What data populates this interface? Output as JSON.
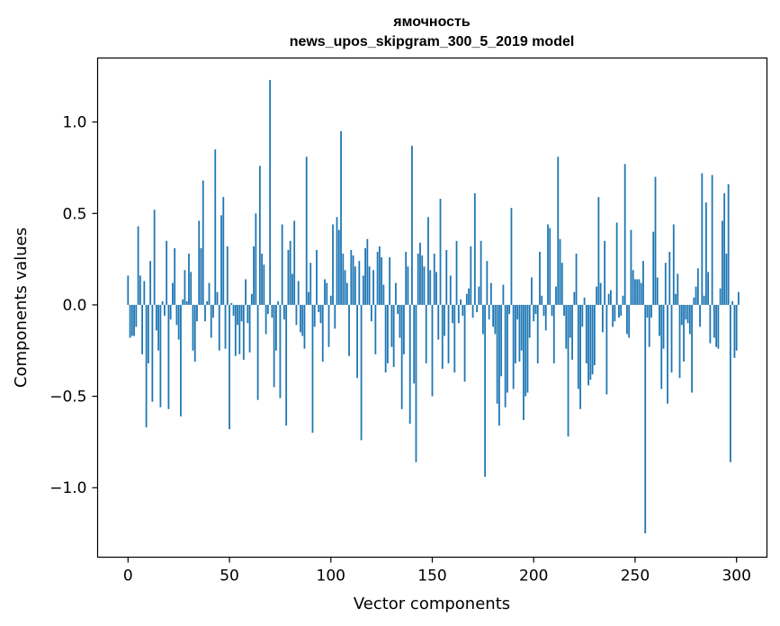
{
  "chart_data": {
    "type": "bar",
    "title_line1": "ямочность",
    "title_line2": "news_upos_skipgram_300_5_2019 model",
    "xlabel": "Vector components",
    "ylabel": "Components values",
    "xlim": [
      -15,
      315
    ],
    "ylim": [
      -1.38,
      1.35
    ],
    "x_ticks": [
      0,
      50,
      100,
      150,
      200,
      250,
      300
    ],
    "x_tick_labels": [
      "0",
      "50",
      "100",
      "150",
      "200",
      "250",
      "300"
    ],
    "y_ticks": [
      -1.0,
      -0.5,
      0.0,
      0.5,
      1.0
    ],
    "y_tick_labels": [
      "−1.0",
      "−0.5",
      "0.0",
      "0.5",
      "1.0"
    ],
    "bar_color": "#1f77b4",
    "grid": false,
    "x_start": 0,
    "values": [
      0.16,
      -0.18,
      -0.17,
      -0.17,
      -0.12,
      0.43,
      0.16,
      -0.27,
      0.13,
      -0.67,
      -0.32,
      0.24,
      -0.53,
      0.52,
      -0.14,
      -0.25,
      -0.56,
      0.02,
      -0.06,
      0.35,
      -0.57,
      -0.08,
      0.12,
      0.31,
      -0.11,
      -0.19,
      -0.61,
      0.03,
      0.19,
      0.02,
      0.28,
      0.18,
      -0.25,
      -0.31,
      -0.09,
      0.46,
      0.31,
      0.68,
      -0.09,
      0.02,
      0.12,
      -0.18,
      -0.07,
      0.85,
      0.07,
      -0.25,
      0.49,
      0.59,
      -0.24,
      0.32,
      -0.68,
      0.01,
      -0.06,
      -0.28,
      -0.11,
      -0.27,
      -0.09,
      -0.3,
      0.14,
      -0.1,
      -0.26,
      0.06,
      0.32,
      0.5,
      -0.52,
      0.76,
      0.28,
      0.22,
      -0.16,
      -0.05,
      1.23,
      -0.07,
      -0.45,
      -0.25,
      0.02,
      -0.51,
      0.44,
      -0.08,
      -0.66,
      0.3,
      0.35,
      0.17,
      0.46,
      -0.11,
      0.13,
      -0.15,
      -0.17,
      -0.24,
      0.81,
      0.07,
      0.23,
      -0.7,
      -0.12,
      0.3,
      -0.04,
      -0.1,
      -0.31,
      0.14,
      0.12,
      -0.23,
      0.05,
      0.44,
      -0.13,
      0.48,
      0.41,
      0.95,
      0.28,
      0.19,
      0.12,
      -0.28,
      0.3,
      0.27,
      0.21,
      -0.4,
      0.24,
      -0.74,
      0.16,
      0.31,
      0.36,
      0.21,
      -0.09,
      0.19,
      -0.27,
      0.29,
      0.32,
      0.26,
      0.11,
      -0.37,
      -0.32,
      0.26,
      -0.23,
      -0.34,
      0.12,
      -0.05,
      -0.18,
      -0.57,
      -0.27,
      0.29,
      0.21,
      -0.65,
      0.87,
      -0.43,
      -0.86,
      0.28,
      0.34,
      0.27,
      0.21,
      -0.32,
      0.48,
      0.19,
      -0.5,
      0.28,
      0.18,
      -0.19,
      0.58,
      -0.35,
      -0.17,
      0.3,
      -0.32,
      0.16,
      -0.1,
      -0.37,
      0.35,
      -0.1,
      0.03,
      -0.06,
      -0.42,
      0.06,
      0.09,
      0.32,
      -0.07,
      0.61,
      -0.04,
      0.1,
      0.35,
      -0.16,
      -0.94,
      0.24,
      -0.08,
      0.12,
      -0.12,
      -0.16,
      -0.54,
      -0.66,
      -0.39,
      0.11,
      -0.56,
      -0.48,
      -0.05,
      0.53,
      -0.46,
      -0.32,
      -0.08,
      -0.31,
      -0.25,
      -0.63,
      -0.5,
      -0.48,
      -0.18,
      0.15,
      -0.09,
      -0.05,
      -0.32,
      0.29,
      0.05,
      -0.06,
      -0.14,
      0.44,
      0.42,
      -0.06,
      -0.32,
      0.1,
      0.81,
      0.36,
      0.23,
      -0.06,
      -0.24,
      -0.72,
      -0.18,
      -0.3,
      0.07,
      0.28,
      -0.46,
      -0.57,
      -0.12,
      0.04,
      -0.32,
      -0.44,
      -0.41,
      -0.38,
      -0.33,
      0.1,
      0.59,
      0.12,
      -0.15,
      0.35,
      -0.49,
      0.06,
      0.08,
      -0.12,
      -0.09,
      0.45,
      -0.07,
      -0.06,
      0.05,
      0.77,
      -0.16,
      -0.18,
      0.41,
      0.19,
      0.14,
      0.14,
      0.14,
      0.12,
      0.24,
      -1.25,
      -0.07,
      -0.23,
      -0.07,
      0.4,
      0.7,
      0.15,
      -0.17,
      -0.46,
      -0.24,
      0.23,
      -0.54,
      0.29,
      -0.37,
      0.44,
      0.06,
      0.17,
      -0.4,
      -0.11,
      -0.31,
      -0.08,
      -0.1,
      -0.16,
      -0.48,
      0.04,
      0.1,
      0.2,
      -0.12,
      0.72,
      0.05,
      0.56,
      0.18,
      -0.21,
      0.71,
      -0.18,
      -0.23,
      -0.24,
      0.09,
      0.46,
      0.61,
      0.28,
      0.66,
      -0.86,
      0.02,
      -0.29,
      -0.25,
      0.07
    ]
  }
}
